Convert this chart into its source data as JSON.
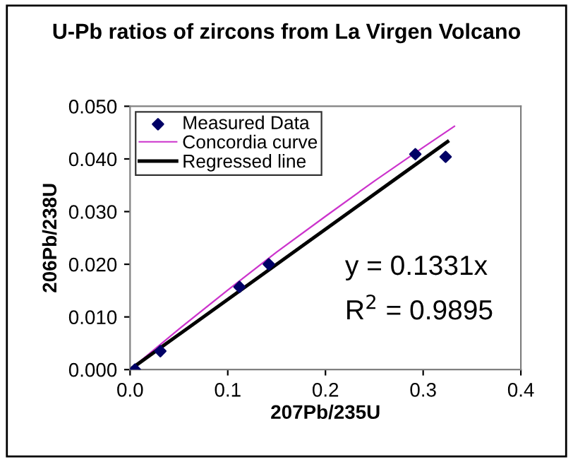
{
  "chart_data": {
    "type": "scatter",
    "title": "U-Pb ratios of zircons from La Virgen Volcano",
    "xlabel": "207Pb/235U",
    "ylabel": "206Pb/238U",
    "xlim": [
      0,
      0.4
    ],
    "xticks": [
      {
        "value": 0,
        "label": "0.0"
      },
      {
        "value": 0.1,
        "label": "0.1"
      },
      {
        "value": 0.2,
        "label": "0.2"
      },
      {
        "value": 0.3,
        "label": "0.3"
      },
      {
        "value": 0.4,
        "label": "0.4"
      }
    ],
    "ylim": [
      0,
      0.05
    ],
    "yticks": [
      {
        "value": 0,
        "label": "0.000"
      },
      {
        "value": 0.01,
        "label": "0.010"
      },
      {
        "value": 0.02,
        "label": "0.020"
      },
      {
        "value": 0.03,
        "label": "0.030"
      },
      {
        "value": 0.04,
        "label": "0.040"
      },
      {
        "value": 0.05,
        "label": "0.050"
      }
    ],
    "grid": false,
    "legend": "top left",
    "series": [
      {
        "name": "Measured Data",
        "marker": "diamond",
        "color": "#000066",
        "x": [
          0.005,
          0.031,
          0.112,
          0.142,
          0.292,
          0.323
        ],
        "values": [
          0.0,
          0.0035,
          0.0157,
          0.02,
          0.0409,
          0.0404
        ]
      },
      {
        "name": "Concordia curve",
        "type": "line",
        "marker": "none",
        "color": "#cc33cc",
        "x": [
          0,
          0.05,
          0.1,
          0.15,
          0.2,
          0.25,
          0.3,
          0.332
        ],
        "values": [
          0,
          0.0077,
          0.0151,
          0.0223,
          0.0291,
          0.0358,
          0.0422,
          0.0462
        ]
      },
      {
        "name": "Regressed line",
        "type": "line",
        "marker": "none",
        "color": "#000000",
        "x": [
          0,
          0.325
        ],
        "values": [
          0,
          0.0433
        ]
      }
    ],
    "annotations": [
      "y = 0.1331x",
      "R$^{2}$ = 0.9895"
    ]
  }
}
